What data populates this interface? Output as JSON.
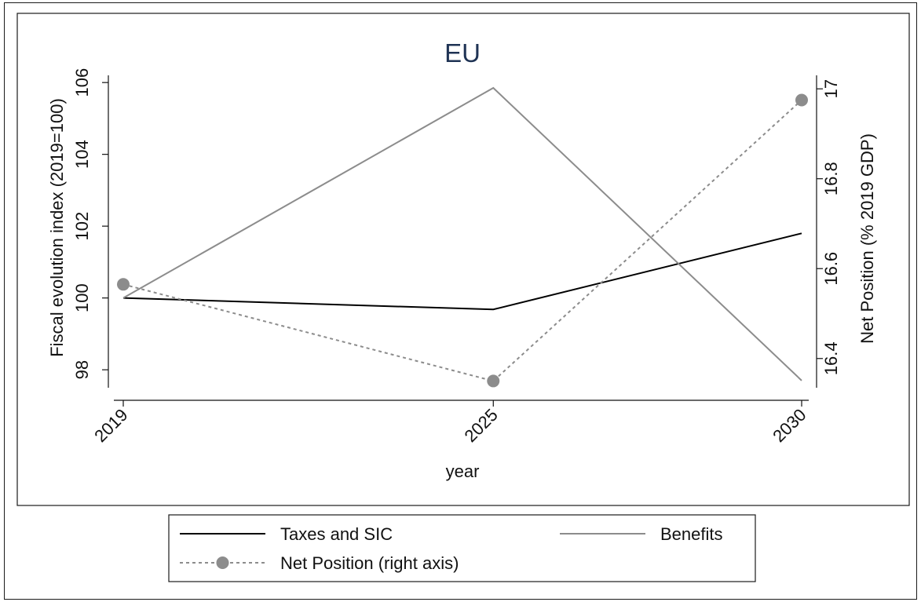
{
  "chart_data": {
    "type": "line",
    "title": "EU",
    "xlabel": "year",
    "ylabel_left": "Fiscal evolution index (2019=100)",
    "ylabel_right": "Net Position (% 2019 GDP)",
    "x": [
      2019,
      2025,
      2030
    ],
    "x_tick_labels": [
      "2019",
      "2025",
      "2030"
    ],
    "y_left_ticks": [
      "98",
      "100",
      "102",
      "104",
      "106"
    ],
    "y_right_ticks": [
      "16.4",
      "16.6",
      "16.8",
      "17"
    ],
    "y_left_range": [
      97.5,
      106.2
    ],
    "y_right_range": [
      16.335,
      17.03
    ],
    "grid": false,
    "legend_position": "bottom",
    "series": [
      {
        "name": "Taxes and SIC",
        "axis": "left",
        "values": [
          100,
          99.68,
          101.8
        ],
        "color": "#000000",
        "style": "solid",
        "marker": "none"
      },
      {
        "name": "Benefits",
        "axis": "left",
        "values": [
          100,
          105.85,
          97.7
        ],
        "color": "#8c8c8c",
        "style": "solid",
        "marker": "none"
      },
      {
        "name": "Net Position (right axis)",
        "axis": "right",
        "values": [
          16.565,
          16.35,
          16.975
        ],
        "color": "#8c8c8c",
        "style": "dashed",
        "marker": "circle"
      }
    ]
  }
}
